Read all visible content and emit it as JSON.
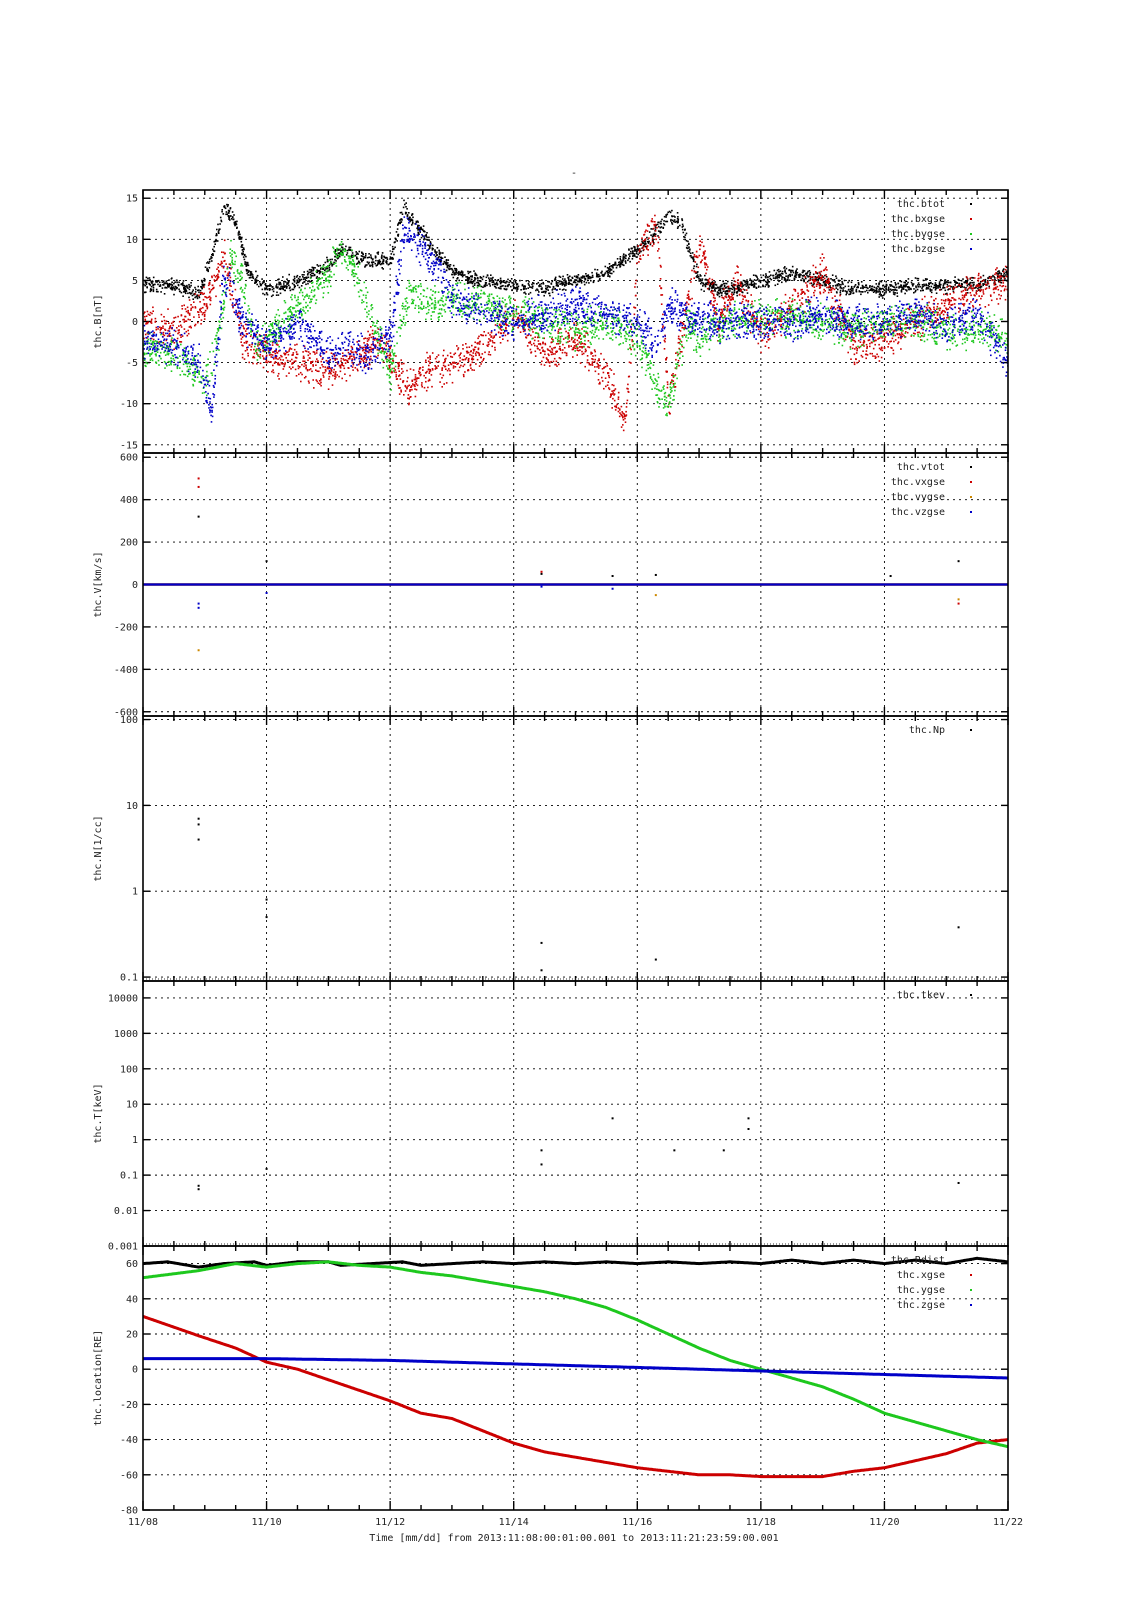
{
  "top_mark": "-",
  "xaxis": {
    "tick_labels": [
      "11/08",
      "11/10",
      "11/12",
      "11/14",
      "11/16",
      "11/18",
      "11/20",
      "11/22"
    ],
    "label": "Time [mm/dd]  from 2013:11:08:00:01:00.001  to  2013:11:21:23:59:00.001"
  },
  "colors": {
    "black": "#000000",
    "red": "#cc0000",
    "green": "#1ec81e",
    "blue": "#0000c8"
  },
  "chart_data": [
    {
      "type": "scatter",
      "ylabel": "thc.B[nT]",
      "ylim": [
        -16,
        16
      ],
      "yticks": [
        -15,
        -10,
        -5,
        0,
        5,
        10,
        15
      ],
      "ytick_labels": [
        "-15",
        "-10",
        "-5",
        "0",
        "5",
        "10",
        "15"
      ],
      "grid": true,
      "legend": "top-right",
      "series": [
        {
          "name": "thc.btot",
          "color": "#000000",
          "x": [
            0,
            0.5,
            0.9,
            1.1,
            1.3,
            1.5,
            1.7,
            2.0,
            2.5,
            3.0,
            3.2,
            3.6,
            4.0,
            4.2,
            4.5,
            4.8,
            5.0,
            5.5,
            6.0,
            6.5,
            7.0,
            7.5,
            8.0,
            8.3,
            8.5,
            8.7,
            9.0,
            9.3,
            9.5,
            10.0,
            10.5,
            11.0,
            11.5,
            12.0,
            12.5,
            13.0,
            13.5,
            14.0
          ],
          "y": [
            4.5,
            4.3,
            3.5,
            8,
            14,
            12,
            6,
            4,
            5,
            7,
            9,
            7.5,
            7.5,
            14,
            11,
            8,
            6,
            5,
            4.5,
            4.2,
            5,
            6,
            9,
            11,
            13,
            12,
            5,
            4,
            4,
            5,
            6,
            5,
            4,
            4,
            4.5,
            4.5,
            4.5,
            6
          ]
        },
        {
          "name": "thc.bxgse",
          "color": "#cc0000",
          "x": [
            0,
            0.5,
            1.0,
            1.3,
            1.6,
            2.0,
            2.5,
            3.0,
            3.5,
            3.8,
            4.0,
            4.3,
            4.6,
            5.0,
            5.5,
            6.0,
            6.5,
            7.0,
            7.5,
            7.8,
            8.0,
            8.3,
            8.5,
            8.8,
            9.0,
            9.3,
            9.6,
            10.0,
            10.5,
            11.0,
            11.5,
            12.0,
            12.5,
            13.0,
            13.5,
            14.0
          ],
          "y": [
            0,
            -1,
            2,
            8,
            -2,
            -4,
            -5,
            -6,
            -4,
            -2,
            -5,
            -8,
            -6,
            -5,
            -3,
            1,
            -4,
            -2,
            -7,
            -12,
            8,
            12,
            -10,
            2,
            10,
            0,
            5,
            -2,
            2,
            6,
            -3,
            -2,
            0,
            2,
            4,
            5
          ]
        },
        {
          "name": "thc.bygse",
          "color": "#1ec81e",
          "x": [
            0,
            0.5,
            1.0,
            1.2,
            1.4,
            1.6,
            1.8,
            2.0,
            2.5,
            3.0,
            3.2,
            3.5,
            3.8,
            4.0,
            4.3,
            4.6,
            5.0,
            5.5,
            6.0,
            6.5,
            7.0,
            7.5,
            8.0,
            8.3,
            8.5,
            8.8,
            9.0,
            9.5,
            10.0,
            10.5,
            11.0,
            11.5,
            12.0,
            12.5,
            13.0,
            13.5,
            14.0
          ],
          "y": [
            -3,
            -4,
            -7,
            -2,
            8,
            5,
            -3,
            -2,
            2,
            6,
            9,
            5,
            -2,
            -6,
            4,
            2,
            3,
            2,
            1,
            0,
            -1,
            0,
            -2,
            -8,
            -10,
            0,
            -2,
            0,
            0.5,
            0.5,
            0,
            -1,
            0,
            0,
            -1,
            -1,
            -2
          ]
        },
        {
          "name": "thc.bzgse",
          "color": "#0000c8",
          "x": [
            0,
            0.5,
            0.9,
            1.1,
            1.3,
            1.6,
            2.0,
            2.5,
            3.0,
            3.3,
            3.6,
            4.0,
            4.2,
            4.5,
            4.8,
            5.0,
            5.5,
            6.0,
            6.5,
            7.0,
            7.5,
            8.0,
            8.3,
            8.5,
            9.0,
            9.5,
            10.0,
            10.5,
            11.0,
            11.5,
            12.0,
            12.5,
            13.0,
            13.5,
            14.0
          ],
          "y": [
            -2,
            -3,
            -5,
            -11,
            6,
            0,
            -3,
            0,
            -4,
            -3,
            -4,
            -2,
            11,
            9,
            6,
            3,
            1,
            0,
            1,
            2,
            1,
            0,
            -3,
            2,
            0,
            0,
            0,
            0,
            1,
            0,
            0,
            1,
            0,
            1,
            -5
          ]
        }
      ]
    },
    {
      "type": "scatter",
      "ylabel": "thc.V[km/s]",
      "ylim": [
        -620,
        620
      ],
      "yticks": [
        -600,
        -400,
        -200,
        0,
        200,
        400,
        600
      ],
      "ytick_labels": [
        "-600",
        "-400",
        "-200",
        "0",
        "200",
        "400",
        "600"
      ],
      "grid": true,
      "legend": "top-right",
      "series": [
        {
          "name": "thc.vtot",
          "color": "#000000",
          "x": [
            0,
            14
          ],
          "y": [
            0,
            0
          ],
          "points_x": [
            0.9,
            2.0,
            6.45,
            7.6,
            8.3,
            12.1,
            13.2
          ],
          "points_y": [
            320,
            110,
            50,
            40,
            45,
            40,
            110
          ]
        },
        {
          "name": "thc.vxgse",
          "color": "#cc0000",
          "x": [
            0,
            14
          ],
          "y": [
            0,
            0
          ],
          "points_x": [
            0.9,
            0.9,
            6.45,
            13.2
          ],
          "points_y": [
            500,
            460,
            60,
            -90
          ]
        },
        {
          "name": "thc.vygse",
          "color": "#cc8800",
          "x": [
            0,
            14
          ],
          "y": [
            0,
            0
          ],
          "points_x": [
            0.9,
            8.3,
            13.2
          ],
          "points_y": [
            -310,
            -50,
            -70
          ]
        },
        {
          "name": "thc.vzgse",
          "color": "#0000c8",
          "x": [
            0,
            14
          ],
          "y": [
            0,
            0
          ],
          "points_x": [
            0.9,
            0.9,
            2.0,
            6.45,
            7.6
          ],
          "points_y": [
            -110,
            -90,
            -40,
            -10,
            -20
          ]
        }
      ]
    },
    {
      "type": "scatter",
      "ylabel": "thc.N[1/cc]",
      "yscale": "log",
      "ylim": [
        0.09,
        110
      ],
      "yticks": [
        0.1,
        1,
        10,
        100
      ],
      "ytick_labels": [
        "0.1",
        "1",
        "10",
        "100"
      ],
      "grid": true,
      "legend": "top-right",
      "series": [
        {
          "name": "thc.Np",
          "color": "#000000",
          "x": [
            0.9,
            0.9,
            0.9,
            2.0,
            2.0,
            6.45,
            6.45,
            8.3,
            13.2
          ],
          "y": [
            7,
            6,
            4,
            0.8,
            0.5,
            0.25,
            0.12,
            0.16,
            0.38
          ]
        }
      ]
    },
    {
      "type": "scatter",
      "ylabel": "thc.T[keV]",
      "yscale": "log",
      "ylim": [
        0.001,
        30000
      ],
      "yticks": [
        0.001,
        0.01,
        0.1,
        1,
        10,
        100,
        1000,
        10000
      ],
      "ytick_labels": [
        "0.001",
        "0.01",
        "0.1",
        "1",
        "10",
        "100",
        "1000",
        "10000"
      ],
      "grid": true,
      "legend": "top-right",
      "series": [
        {
          "name": "thc.tkev",
          "color": "#000000",
          "x": [
            0.9,
            0.9,
            2.0,
            6.45,
            6.45,
            7.6,
            8.6,
            9.4,
            9.8,
            9.8,
            13.2
          ],
          "y": [
            0.05,
            0.04,
            0.15,
            0.5,
            0.2,
            4,
            0.5,
            0.5,
            4,
            2,
            0.06
          ]
        }
      ]
    },
    {
      "type": "line",
      "ylabel": "thc.location[RE]",
      "ylim": [
        -80,
        70
      ],
      "yticks": [
        -80,
        -60,
        -40,
        -20,
        0,
        20,
        40,
        60
      ],
      "ytick_labels": [
        "-80",
        "-60",
        "-40",
        "-20",
        "0",
        "20",
        "40",
        "60"
      ],
      "grid": true,
      "legend": "top-right",
      "series": [
        {
          "name": "thc.Rdist",
          "color": "#000000",
          "x": [
            0,
            0.4,
            0.9,
            1.3,
            1.8,
            2.0,
            2.5,
            3.0,
            3.2,
            3.7,
            4.2,
            4.5,
            5.0,
            5.5,
            6.0,
            6.5,
            7.0,
            7.5,
            8.0,
            8.5,
            9.0,
            9.5,
            10.0,
            10.5,
            11.0,
            11.5,
            12.0,
            12.5,
            13.0,
            13.5,
            14.0
          ],
          "y": [
            60,
            61,
            58,
            60,
            61,
            59,
            61,
            61,
            59,
            60,
            61,
            59,
            60,
            61,
            60,
            61,
            60,
            61,
            60,
            61,
            60,
            61,
            60,
            62,
            60,
            62,
            60,
            62,
            60,
            63,
            61
          ]
        },
        {
          "name": "thc.xgse",
          "color": "#cc0000",
          "x": [
            0,
            0.9,
            1.5,
            2.0,
            2.5,
            3.0,
            3.5,
            4.0,
            4.5,
            5.0,
            5.5,
            6.0,
            6.5,
            7.0,
            7.5,
            8.0,
            8.5,
            9.0,
            9.5,
            10.0,
            10.5,
            11.0,
            11.5,
            12.0,
            12.5,
            13.0,
            13.5,
            14.0
          ],
          "y": [
            30,
            19,
            12,
            4,
            0,
            -6,
            -12,
            -18,
            -25,
            -28,
            -35,
            -42,
            -47,
            -50,
            -53,
            -56,
            -58,
            -60,
            -60,
            -61,
            -61,
            -61,
            -58,
            -56,
            -52,
            -48,
            -42,
            -40
          ]
        },
        {
          "name": "thc.ygse",
          "color": "#1ec81e",
          "x": [
            0,
            0.9,
            1.5,
            2.0,
            2.5,
            3.0,
            3.5,
            4.0,
            4.5,
            5.0,
            5.5,
            6.0,
            6.5,
            7.0,
            7.5,
            8.0,
            8.5,
            9.0,
            9.5,
            10.0,
            10.5,
            11.0,
            11.5,
            12.0,
            12.5,
            13.0,
            13.5,
            14.0
          ],
          "y": [
            52,
            56,
            60,
            58,
            60,
            61,
            59,
            58,
            55,
            53,
            50,
            47,
            44,
            40,
            35,
            28,
            20,
            12,
            5,
            0,
            -5,
            -10,
            -17,
            -25,
            -30,
            -35,
            -40,
            -44
          ]
        },
        {
          "name": "thc.zgse",
          "color": "#0000c8",
          "x": [
            0,
            1.0,
            2.0,
            3.0,
            4.0,
            5.0,
            6.0,
            7.0,
            8.0,
            9.0,
            10.0,
            11.0,
            12.0,
            13.0,
            14.0
          ],
          "y": [
            6,
            6,
            6,
            5.5,
            5,
            4,
            3,
            2,
            1,
            0,
            -1,
            -2,
            -3,
            -4,
            -5
          ]
        }
      ]
    }
  ]
}
